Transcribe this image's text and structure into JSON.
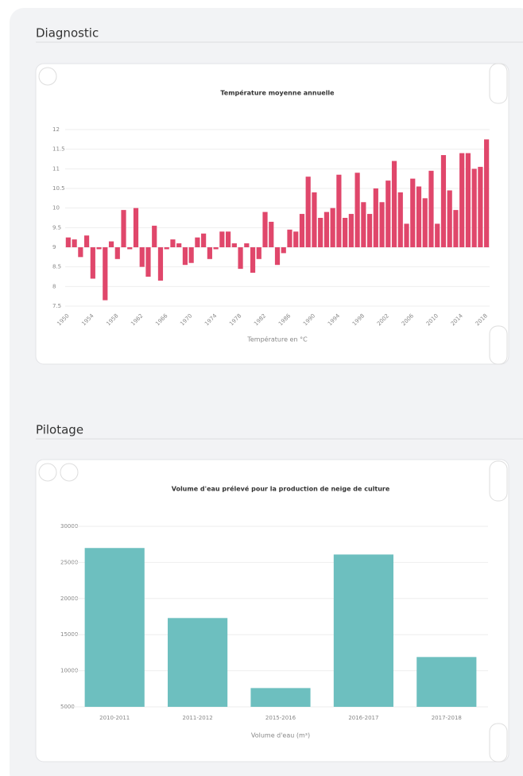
{
  "sections": [
    "Diagnostic",
    "Pilotage"
  ],
  "chart_data": [
    {
      "type": "bar",
      "title": "Température moyenne annuelle",
      "x_label": "Température en °C",
      "categories": [
        "1950",
        null,
        null,
        null,
        "1954",
        null,
        null,
        null,
        "1958",
        null,
        null,
        null,
        "1962",
        null,
        null,
        null,
        "1966",
        null,
        null,
        null,
        "1970",
        null,
        null,
        null,
        "1974",
        null,
        null,
        null,
        "1978",
        null,
        null,
        null,
        "1982",
        null,
        null,
        null,
        "1986",
        null,
        null,
        null,
        "1990",
        null,
        null,
        null,
        "1994",
        null,
        null,
        null,
        "1998",
        null,
        null,
        null,
        "2002",
        null,
        null,
        null,
        "2006",
        null,
        null,
        null,
        "2010",
        null,
        null,
        null,
        "2014",
        null,
        null,
        null,
        "2018"
      ],
      "values": [
        9.25,
        9.2,
        8.75,
        9.3,
        8.2,
        8.95,
        7.65,
        9.15,
        8.7,
        9.95,
        8.95,
        10.0,
        8.5,
        8.25,
        9.55,
        8.15,
        8.95,
        9.2,
        9.1,
        8.55,
        8.6,
        9.25,
        9.35,
        8.7,
        8.95,
        9.4,
        9.4,
        9.1,
        8.45,
        9.1,
        8.35,
        8.7,
        9.9,
        9.65,
        8.55,
        8.85,
        9.45,
        9.4,
        9.85,
        10.8,
        10.4,
        9.75,
        9.9,
        10.0,
        10.85,
        9.75,
        9.85,
        10.9,
        10.15,
        9.85,
        10.5,
        10.15,
        10.7,
        11.2,
        10.4,
        9.6,
        10.75,
        10.55,
        10.25,
        10.95,
        9.6,
        11.35,
        10.45,
        9.95,
        11.4,
        11.4,
        11.0,
        11.05,
        11.75
      ],
      "baseline": 9,
      "color": "#e0476b",
      "ylim": [
        7.5,
        12
      ],
      "yticks": [
        7.5,
        8,
        8.5,
        9,
        9.5,
        10,
        10.5,
        11,
        11.5,
        12
      ],
      "grid": true
    },
    {
      "type": "bar",
      "title": "Volume d'eau prélevé pour la production de neige de culture",
      "x_label": "Volume d'eau (m³)",
      "categories": [
        "2010-2011",
        "2011-2012",
        "2015-2016",
        "2016-2017",
        "2017-2018"
      ],
      "values": [
        27000,
        17300,
        7600,
        26100,
        11900
      ],
      "color": "#6dbfbf",
      "ylim": [
        5000,
        30000
      ],
      "yticks": [
        5000,
        10000,
        15000,
        20000,
        25000,
        30000
      ],
      "grid": true
    }
  ]
}
